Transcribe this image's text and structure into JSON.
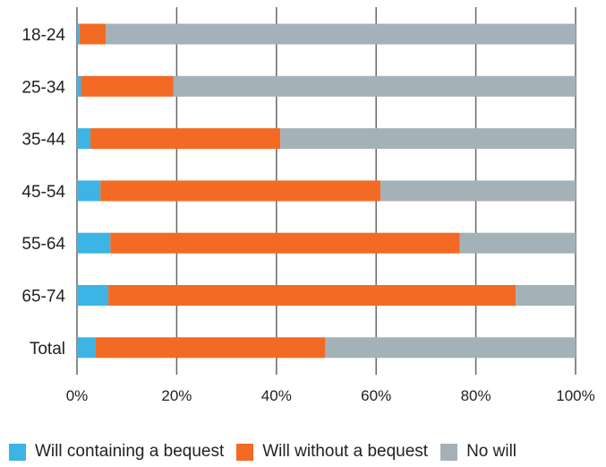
{
  "chart_data": {
    "type": "bar",
    "orientation": "horizontal",
    "stacked": true,
    "title": "",
    "xlabel": "",
    "ylabel": "",
    "xlim": [
      0,
      100
    ],
    "x_ticks": [
      "0%",
      "20%",
      "40%",
      "60%",
      "80%",
      "100%"
    ],
    "grid": "vertical",
    "legend_position": "bottom",
    "categories": [
      "18-24",
      "25-34",
      "35-44",
      "45-54",
      "55-64",
      "65-74",
      "Total"
    ],
    "series": [
      {
        "name": "Will containing a bequest",
        "color": "#3cb4e6",
        "values": [
          0.5,
          0.8,
          2.7,
          4.7,
          6.7,
          6.3,
          3.7
        ]
      },
      {
        "name": "Will without a bequest",
        "color": "#f26a24",
        "values": [
          5.3,
          18.5,
          38.1,
          56.2,
          70.1,
          81.7,
          46.1
        ]
      },
      {
        "name": "No will",
        "color": "#a4b1b9",
        "values": [
          94.2,
          80.7,
          59.2,
          39.1,
          23.2,
          12.0,
          50.2
        ]
      }
    ]
  }
}
